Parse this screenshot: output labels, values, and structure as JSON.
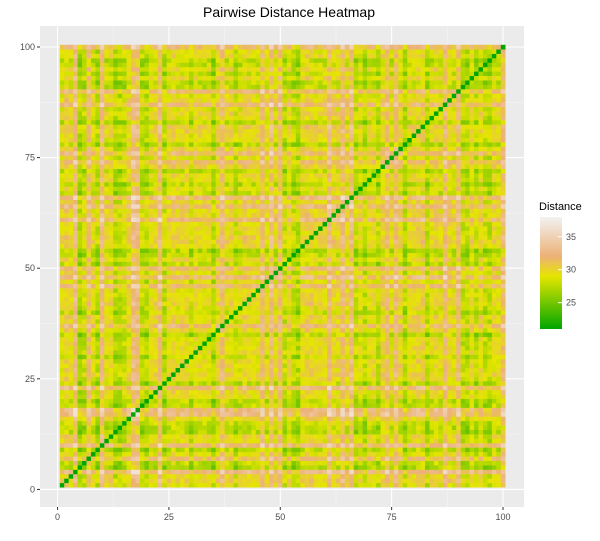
{
  "chart_data": {
    "type": "heatmap",
    "title": "Pairwise Distance Heatmap",
    "xlabel": "",
    "ylabel": "",
    "xlim": [
      1,
      100
    ],
    "ylim": [
      1,
      100
    ],
    "grid": true,
    "n_items": 100,
    "x_ticks": [
      0,
      25,
      50,
      75,
      100
    ],
    "y_ticks": [
      0,
      25,
      50,
      75,
      100
    ],
    "x_tick_labels": [
      "0",
      "25",
      "50",
      "75",
      "100"
    ],
    "y_tick_labels": [
      "0",
      "25",
      "50",
      "75",
      "100"
    ],
    "diagonal_value": 21,
    "value_range": [
      21,
      38
    ],
    "legend": {
      "title": "Distance",
      "placement": "right",
      "ticks": [
        25,
        30,
        35
      ],
      "tick_labels": [
        "25",
        "30",
        "35"
      ],
      "colors": [
        "#00a600",
        "#e6e600",
        "#ecb176",
        "#f2f2f2"
      ],
      "color_stops": [
        21,
        29,
        32,
        38
      ]
    },
    "colors": {
      "panel_background": "#ebebeb",
      "grid_major": "#ffffff",
      "grid_minor": "#f5f5f5",
      "low": "#00a600",
      "mid_low": "#e6e600",
      "mid_high": "#ecb176",
      "high": "#f2f2f2"
    }
  }
}
